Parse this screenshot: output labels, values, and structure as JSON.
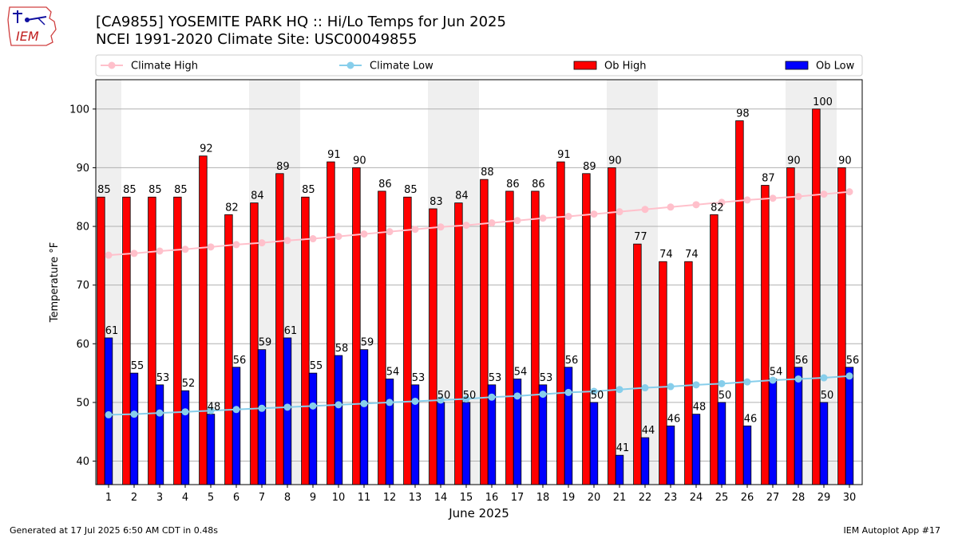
{
  "header": {
    "logo_text": "IEM",
    "title_line1": "[CA9855] YOSEMITE PARK HQ :: Hi/Lo Temps for Jun 2025",
    "title_line2": "NCEI 1991-2020 Climate Site: USC00049855"
  },
  "footer": {
    "generated": "Generated at 17 Jul 2025 6:50 AM CDT in 0.48s",
    "app": "IEM Autoplot App #17"
  },
  "colors": {
    "ob_high": "#ff0000",
    "ob_low": "#0000ff",
    "climate_high": "#ffc0cb",
    "climate_low": "#87ceeb",
    "weekend_band": "#efefef",
    "grid": "#b0b0b0"
  },
  "chart_data": {
    "type": "bar",
    "xlabel": "June 2025",
    "ylabel": "Temperature °F",
    "ylim": [
      36,
      105
    ],
    "yticks": [
      40,
      50,
      60,
      70,
      80,
      90,
      100
    ],
    "grid": "y",
    "legend": "top",
    "categories": [
      "1",
      "2",
      "3",
      "4",
      "5",
      "6",
      "7",
      "8",
      "9",
      "10",
      "11",
      "12",
      "13",
      "14",
      "15",
      "16",
      "17",
      "18",
      "19",
      "20",
      "21",
      "22",
      "23",
      "24",
      "25",
      "26",
      "27",
      "28",
      "29",
      "30"
    ],
    "weekend_days": [
      1,
      7,
      8,
      14,
      15,
      21,
      22,
      28,
      29
    ],
    "series": [
      {
        "name": "Climate High",
        "kind": "line",
        "values": [
          75.1,
          75.4,
          75.8,
          76.1,
          76.5,
          76.9,
          77.2,
          77.6,
          77.9,
          78.3,
          78.7,
          79.1,
          79.5,
          79.9,
          80.2,
          80.6,
          81.0,
          81.4,
          81.7,
          82.1,
          82.5,
          82.9,
          83.3,
          83.7,
          84.1,
          84.5,
          84.8,
          85.1,
          85.5,
          85.9
        ]
      },
      {
        "name": "Climate Low",
        "kind": "line",
        "values": [
          47.9,
          48.0,
          48.2,
          48.4,
          48.6,
          48.8,
          49.0,
          49.2,
          49.4,
          49.6,
          49.8,
          50.0,
          50.2,
          50.4,
          50.6,
          50.9,
          51.1,
          51.4,
          51.7,
          51.9,
          52.2,
          52.5,
          52.7,
          53.0,
          53.2,
          53.5,
          53.8,
          54.0,
          54.2,
          54.5
        ]
      },
      {
        "name": "Ob High",
        "kind": "bar",
        "values": [
          85,
          85,
          85,
          85,
          92,
          82,
          84,
          89,
          85,
          91,
          90,
          86,
          85,
          83,
          84,
          88,
          86,
          86,
          91,
          89,
          90,
          77,
          74,
          74,
          82,
          98,
          87,
          90,
          100,
          90
        ]
      },
      {
        "name": "Ob Low",
        "kind": "bar",
        "values": [
          61,
          55,
          53,
          52,
          48,
          56,
          59,
          61,
          55,
          58,
          59,
          54,
          53,
          50,
          50,
          53,
          54,
          53,
          56,
          50,
          41,
          44,
          46,
          48,
          50,
          46,
          54,
          56,
          50,
          56
        ]
      }
    ]
  }
}
